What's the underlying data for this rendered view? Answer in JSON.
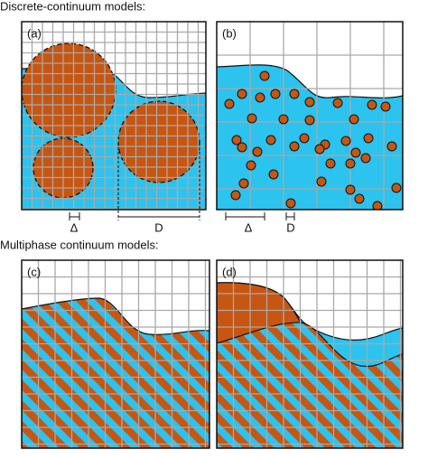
{
  "sections": [
    "Discrete-continuum models:",
    "Multiphase continuum models:"
  ],
  "panels": [
    {
      "label": "(a)",
      "delta": "Δ",
      "size": "D"
    },
    {
      "label": "(b)",
      "delta": "Δ",
      "size": "D"
    },
    {
      "label": "(c)"
    },
    {
      "label": "(d)"
    }
  ]
}
